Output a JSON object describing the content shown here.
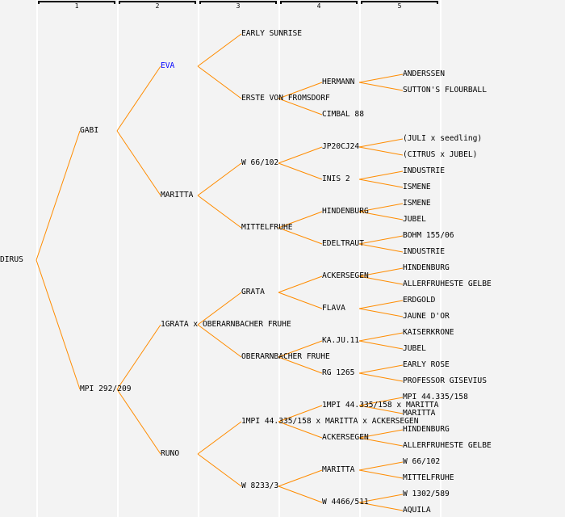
{
  "colors": {
    "line": "#ff8c00",
    "text": "#000000",
    "highlight": "#0000ff",
    "background": "#f3f3f3"
  },
  "generations": [
    "1",
    "2",
    "3",
    "4",
    "5"
  ],
  "tree": {
    "name": "DIRUS",
    "children": [
      {
        "name": "GABI",
        "children": [
          {
            "name": "EVA",
            "highlight": true,
            "children": [
              {
                "name": "EARLY SUNRISE",
                "children": []
              },
              {
                "name": "ERSTE VON FROMSDORF",
                "children": [
                  {
                    "name": "HERMANN",
                    "children": [
                      {
                        "name": "ANDERSSEN"
                      },
                      {
                        "name": "SUTTON'S FLOURBALL"
                      }
                    ]
                  },
                  {
                    "name": "CIMBAL 88",
                    "children": []
                  }
                ]
              }
            ]
          },
          {
            "name": "MARITTA",
            "children": [
              {
                "name": "W 66/102",
                "children": [
                  {
                    "name": "JP20CJ24",
                    "children": [
                      {
                        "name": "(JULI x seedling)"
                      },
                      {
                        "name": "(CITRUS x JUBEL)"
                      }
                    ]
                  },
                  {
                    "name": "INIS 2",
                    "children": [
                      {
                        "name": "INDUSTRIE"
                      },
                      {
                        "name": "ISMENE"
                      }
                    ]
                  }
                ]
              },
              {
                "name": "MITTELFRUHE",
                "children": [
                  {
                    "name": "HINDENBURG",
                    "children": [
                      {
                        "name": "ISMENE"
                      },
                      {
                        "name": "JUBEL"
                      }
                    ]
                  },
                  {
                    "name": "EDELTRAUT",
                    "children": [
                      {
                        "name": "BOHM 155/06"
                      },
                      {
                        "name": "INDUSTRIE"
                      }
                    ]
                  }
                ]
              }
            ]
          }
        ]
      },
      {
        "name": "MPI 292/209",
        "children": [
          {
            "name": "1GRATA x OBERARNBACHER FRUHE",
            "children": [
              {
                "name": "GRATA",
                "children": [
                  {
                    "name": "ACKERSEGEN",
                    "children": [
                      {
                        "name": "HINDENBURG"
                      },
                      {
                        "name": "ALLERFRUHESTE GELBE"
                      }
                    ]
                  },
                  {
                    "name": "FLAVA",
                    "children": [
                      {
                        "name": "ERDGOLD"
                      },
                      {
                        "name": "JAUNE D'OR"
                      }
                    ]
                  }
                ]
              },
              {
                "name": "OBERARNBACHER FRUHE",
                "children": [
                  {
                    "name": "KA.JU.11",
                    "children": [
                      {
                        "name": "KAISERKRONE"
                      },
                      {
                        "name": "JUBEL"
                      }
                    ]
                  },
                  {
                    "name": "RG 1265",
                    "children": [
                      {
                        "name": "EARLY ROSE"
                      },
                      {
                        "name": "PROFESSOR GISEVIUS"
                      }
                    ]
                  }
                ]
              }
            ]
          },
          {
            "name": "RUNO",
            "children": [
              {
                "name": "1MPI 44.335/158 x MARITTA x ACKERSEGEN",
                "children": [
                  {
                    "name": "1MPI 44.335/158 x MARITTA",
                    "children": [
                      {
                        "name": "MPI 44.335/158"
                      },
                      {
                        "name": "MARITTA"
                      }
                    ]
                  },
                  {
                    "name": "ACKERSEGEN",
                    "children": [
                      {
                        "name": "HINDENBURG"
                      },
                      {
                        "name": "ALLERFRUHESTE GELBE"
                      }
                    ]
                  }
                ]
              },
              {
                "name": "W 8233/3",
                "children": [
                  {
                    "name": "MARITTA",
                    "children": [
                      {
                        "name": "W 66/102"
                      },
                      {
                        "name": "MITTELFRUHE"
                      }
                    ]
                  },
                  {
                    "name": "W 4466/511",
                    "children": [
                      {
                        "name": "W 1302/589"
                      },
                      {
                        "name": "AQUILA"
                      }
                    ]
                  }
                ]
              }
            ]
          }
        ]
      }
    ]
  }
}
